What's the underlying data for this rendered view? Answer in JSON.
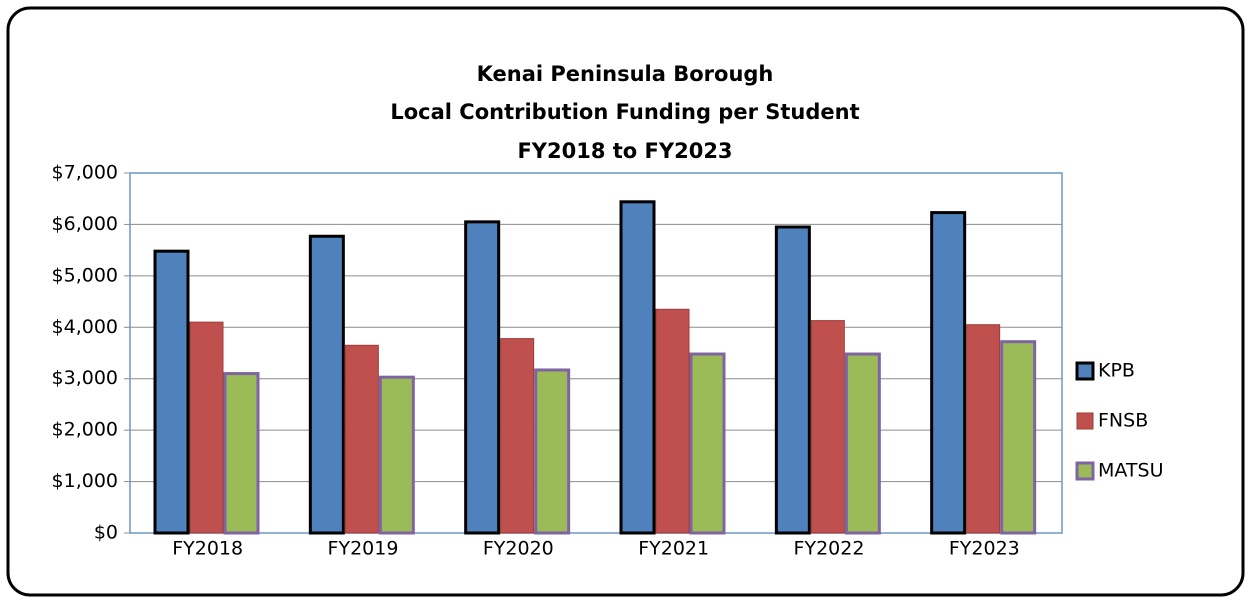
{
  "chart_data": {
    "type": "bar",
    "title": [
      "Kenai Peninsula Borough",
      "Local Contribution Funding per Student",
      "FY2018 to FY2023"
    ],
    "categories": [
      "FY2018",
      "FY2019",
      "FY2020",
      "FY2021",
      "FY2022",
      "FY2023"
    ],
    "series": [
      {
        "name": "KPB",
        "color": "#4f81bd",
        "edgecolor": "#000000",
        "values": [
          5480,
          5770,
          6050,
          6440,
          5950,
          6230
        ]
      },
      {
        "name": "FNSB",
        "color": "#c0504d",
        "edgecolor": "#9c3b38",
        "values": [
          4100,
          3650,
          3780,
          4350,
          4130,
          4050
        ]
      },
      {
        "name": "MATSU",
        "color": "#9bbb59",
        "edgecolor": "#8064a2",
        "values": [
          3100,
          3030,
          3170,
          3480,
          3480,
          3720
        ]
      }
    ],
    "ylim": [
      0,
      7000
    ],
    "yticks": [
      {
        "value": 0,
        "label": "$0"
      },
      {
        "value": 1000,
        "label": "$1,000"
      },
      {
        "value": 2000,
        "label": "$2,000"
      },
      {
        "value": 3000,
        "label": "$3,000"
      },
      {
        "value": 4000,
        "label": "$4,000"
      },
      {
        "value": 5000,
        "label": "$5,000"
      },
      {
        "value": 6000,
        "label": "$6,000"
      },
      {
        "value": 7000,
        "label": "$7,000"
      }
    ],
    "grid": true,
    "legend": "right"
  }
}
